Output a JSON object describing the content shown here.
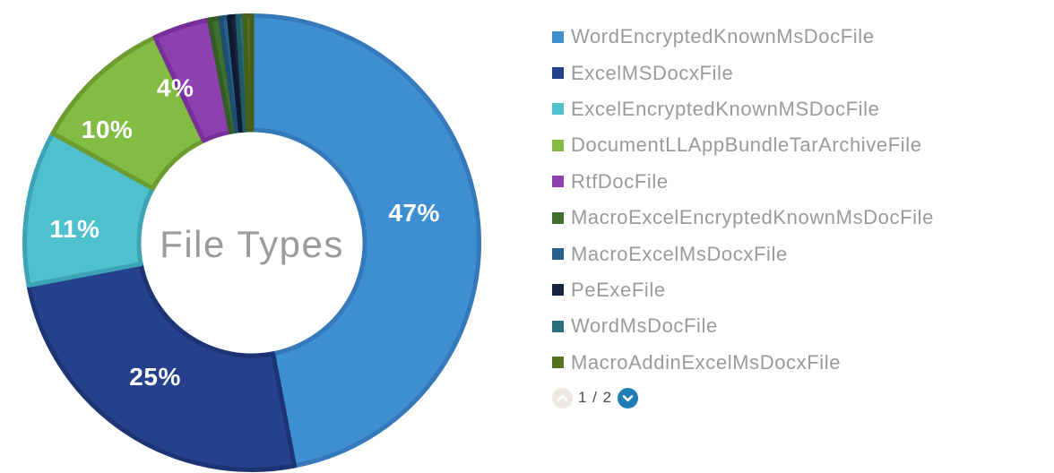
{
  "chart_data": {
    "type": "pie",
    "donut": true,
    "title": "File Types",
    "legend_position": "right",
    "series": [
      {
        "name": "WordEncryptedKnownMsDocFile",
        "value": 47,
        "label": "47%",
        "fill": "#3E8ED2",
        "border": "#3579BA"
      },
      {
        "name": "ExcelMSDocxFile",
        "value": 25,
        "label": "25%",
        "fill": "#25418D",
        "border": "#1C3374"
      },
      {
        "name": "ExcelEncryptedKnownMSDocFile",
        "value": 11,
        "label": "11%",
        "fill": "#4EC0CE",
        "border": "#3DA4B6"
      },
      {
        "name": "DocumentLLAppBundleTarArchiveFile",
        "value": 10,
        "label": "10%",
        "fill": "#82BC42",
        "border": "#6C9C30"
      },
      {
        "name": "RtfDocFile",
        "value": 4,
        "label": "4%",
        "fill": "#8E3FB0",
        "border": "#772F99"
      },
      {
        "name": "MacroExcelEncryptedKnownMsDocFile",
        "value": 0.8,
        "label": "",
        "fill": "#3F6E2E",
        "border": "#335C25"
      },
      {
        "name": "MacroExcelMsDocxFile",
        "value": 0.6,
        "label": "",
        "fill": "#27608A",
        "border": "#1F4E72"
      },
      {
        "name": "PeExeFile",
        "value": 0.6,
        "label": "",
        "fill": "#16243F",
        "border": "#101A2E"
      },
      {
        "name": "WordMsDocFile",
        "value": 0.5,
        "label": "",
        "fill": "#2A6F7B",
        "border": "#215A64"
      },
      {
        "name": "MacroAddinExcelMsDocxFile",
        "value": 0.5,
        "label": "",
        "fill": "#55731F",
        "border": "#455E18"
      }
    ]
  },
  "pagination": {
    "label": "1 / 2",
    "up_icon": "chevron-up-icon",
    "down_icon": "chevron-down-icon"
  },
  "colors": {
    "pager_active": "#1E7CB7",
    "pager_disabled": "#ECE9E5",
    "legend_text": "#9A9A9A",
    "title_text": "#9B9B9B",
    "slice_label_text": "#FFFFFF",
    "page_indicator_text": "#4A4A4A",
    "background": "#FFFFFF"
  }
}
